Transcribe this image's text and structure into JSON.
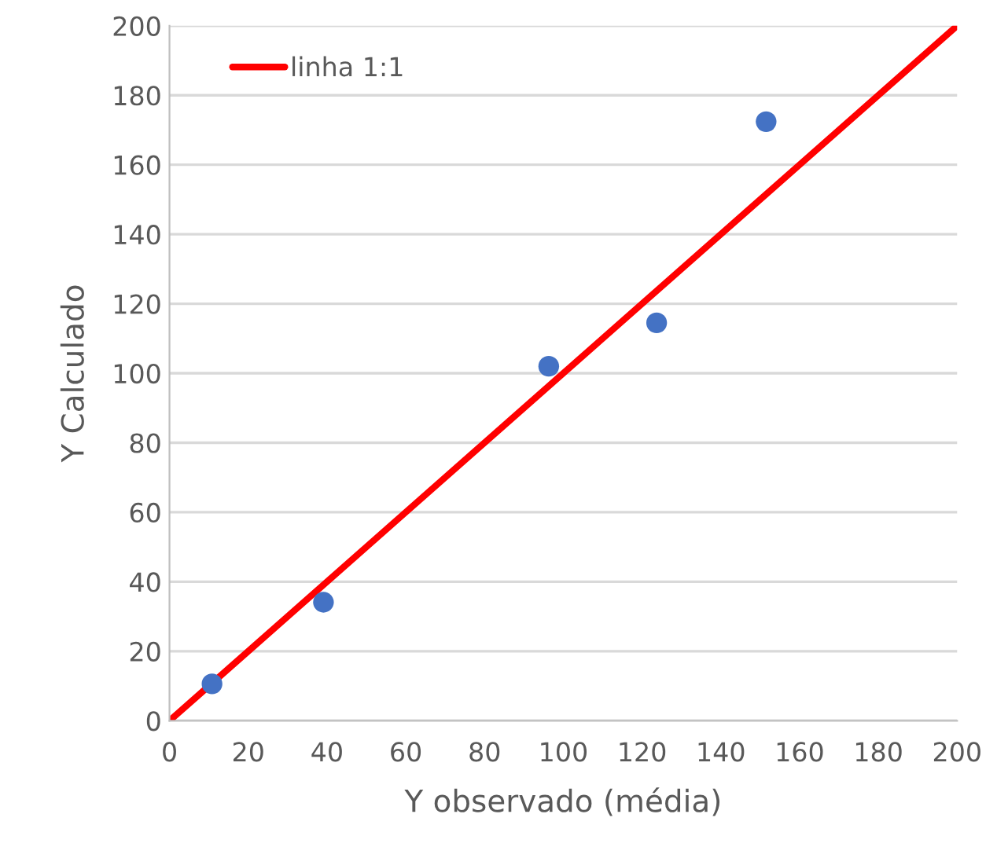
{
  "chart_data": {
    "type": "scatter",
    "xlabel": "Y observado (média)",
    "ylabel": "Y Calculado",
    "xlim": [
      0,
      200
    ],
    "ylim": [
      0,
      200
    ],
    "xticks": [
      0,
      20,
      40,
      60,
      80,
      100,
      120,
      140,
      160,
      180,
      200
    ],
    "yticks": [
      0,
      20,
      40,
      60,
      80,
      100,
      120,
      140,
      160,
      180,
      200
    ],
    "grid": "y",
    "legend": "top left",
    "marker": "circle",
    "series": [
      {
        "color": "#4472c4",
        "x": [
          10.8,
          39.1,
          96.3,
          123.7,
          151.5
        ],
        "values": [
          10.6,
          34.1,
          102,
          114.5,
          172.4
        ]
      },
      {
        "type": "line",
        "name": "linha 1:1",
        "color": "#ff0000",
        "marker": "none",
        "x": [
          0,
          200
        ],
        "values": [
          0,
          200
        ]
      }
    ]
  }
}
